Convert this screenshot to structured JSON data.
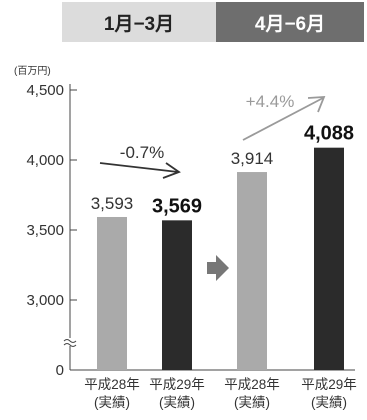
{
  "chart_data": {
    "type": "bar",
    "groups": [
      "1月−3月",
      "4月−6月"
    ],
    "unit_label": "(百万円)",
    "y_ticks": [
      {
        "value": 3000,
        "label": "3,000"
      },
      {
        "value": 3500,
        "label": "3,500"
      },
      {
        "value": 4000,
        "label": "4,000"
      },
      {
        "value": 4500,
        "label": "4,500"
      }
    ],
    "ylim": [
      3000,
      4500
    ],
    "axis_break": true,
    "bars": [
      {
        "group": 0,
        "category": [
          "平成28年",
          "(実績)"
        ],
        "value": 3593,
        "label": "3,593",
        "color": "#aaaaaa",
        "emphasis": false
      },
      {
        "group": 0,
        "category": [
          "平成29年",
          "(実績)"
        ],
        "value": 3569,
        "label": "3,569",
        "color": "#2b2b2b",
        "emphasis": true
      },
      {
        "group": 1,
        "category": [
          "平成28年",
          "(実績)"
        ],
        "value": 3914,
        "label": "3,914",
        "color": "#aaaaaa",
        "emphasis": false
      },
      {
        "group": 1,
        "category": [
          "平成29年",
          "(実績)"
        ],
        "value": 4088,
        "label": "4,088",
        "color": "#2b2b2b",
        "emphasis": true
      }
    ],
    "changes": [
      {
        "group": 0,
        "label": "-0.7%",
        "color": "#333333"
      },
      {
        "group": 1,
        "label": "+4.4%",
        "color": "#9a9a9a"
      }
    ]
  }
}
